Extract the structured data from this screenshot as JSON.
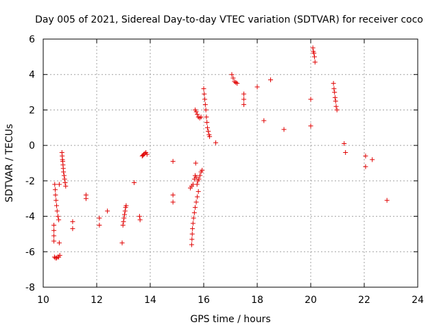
{
  "chart_data": {
    "type": "scatter",
    "title": "Day 005 of 2021, Sidereal Day-to-day VTEC variation (SDTVAR) for receiver coco",
    "xlabel": "GPS time / hours",
    "ylabel": "SDTVAR / TECUs",
    "xlim": [
      10,
      24
    ],
    "ylim": [
      -8,
      6
    ],
    "xticks": [
      10,
      12,
      14,
      16,
      18,
      20,
      22,
      24
    ],
    "yticks": [
      -8,
      -6,
      -4,
      -2,
      0,
      2,
      4,
      6
    ],
    "xtick_labels": [
      "10",
      "12",
      "14",
      "16",
      "18",
      "20",
      "22",
      "24"
    ],
    "ytick_labels": [
      "-8",
      "-6",
      "-4",
      "-2",
      "0",
      "2",
      "4",
      "6"
    ],
    "grid": true,
    "marker": "+",
    "color": "#e00000",
    "series": [
      {
        "name": "SDTVAR",
        "points": [
          [
            10.4,
            -4.5
          ],
          [
            10.4,
            -4.8
          ],
          [
            10.4,
            -5.1
          ],
          [
            10.4,
            -5.4
          ],
          [
            10.43,
            -2.2
          ],
          [
            10.45,
            -2.5
          ],
          [
            10.46,
            -2.8
          ],
          [
            10.48,
            -3.1
          ],
          [
            10.5,
            -3.4
          ],
          [
            10.52,
            -3.7
          ],
          [
            10.55,
            -4.0
          ],
          [
            10.58,
            -4.2
          ],
          [
            10.42,
            -6.3
          ],
          [
            10.46,
            -6.35
          ],
          [
            10.5,
            -6.35
          ],
          [
            10.54,
            -6.3
          ],
          [
            10.58,
            -6.3
          ],
          [
            10.62,
            -6.2
          ],
          [
            10.6,
            -5.5
          ],
          [
            10.6,
            -2.2
          ],
          [
            10.7,
            -0.4
          ],
          [
            10.71,
            -0.6
          ],
          [
            10.72,
            -0.8
          ],
          [
            10.73,
            -0.9
          ],
          [
            10.74,
            -1.1
          ],
          [
            10.75,
            -1.3
          ],
          [
            10.76,
            -1.5
          ],
          [
            10.78,
            -1.7
          ],
          [
            10.8,
            -1.9
          ],
          [
            10.82,
            -2.1
          ],
          [
            10.84,
            -2.3
          ],
          [
            11.1,
            -4.3
          ],
          [
            11.1,
            -4.7
          ],
          [
            11.6,
            -2.8
          ],
          [
            11.6,
            -3.0
          ],
          [
            12.1,
            -4.1
          ],
          [
            12.1,
            -4.5
          ],
          [
            12.4,
            -3.7
          ],
          [
            12.95,
            -5.5
          ],
          [
            12.98,
            -4.5
          ],
          [
            13.0,
            -4.3
          ],
          [
            13.02,
            -4.1
          ],
          [
            13.04,
            -3.9
          ],
          [
            13.06,
            -3.7
          ],
          [
            13.08,
            -3.5
          ],
          [
            13.1,
            -3.4
          ],
          [
            13.4,
            -2.1
          ],
          [
            13.6,
            -4.0
          ],
          [
            13.62,
            -4.2
          ],
          [
            13.7,
            -0.6
          ],
          [
            13.73,
            -0.55
          ],
          [
            13.76,
            -0.5
          ],
          [
            13.8,
            -0.45
          ],
          [
            13.84,
            -0.4
          ],
          [
            13.88,
            -0.5
          ],
          [
            14.85,
            -0.9
          ],
          [
            14.85,
            -2.8
          ],
          [
            14.85,
            -3.2
          ],
          [
            15.5,
            -2.4
          ],
          [
            15.55,
            -2.3
          ],
          [
            15.6,
            -2.2
          ],
          [
            15.65,
            -1.9
          ],
          [
            15.68,
            -1.7
          ],
          [
            15.72,
            -1.8
          ],
          [
            15.75,
            -2.2
          ],
          [
            15.78,
            -2.0
          ],
          [
            15.82,
            -1.9
          ],
          [
            15.86,
            -1.7
          ],
          [
            15.9,
            -1.5
          ],
          [
            15.94,
            -1.4
          ],
          [
            15.55,
            -5.6
          ],
          [
            15.56,
            -5.3
          ],
          [
            15.57,
            -5.0
          ],
          [
            15.58,
            -4.7
          ],
          [
            15.6,
            -4.4
          ],
          [
            15.62,
            -4.1
          ],
          [
            15.65,
            -3.8
          ],
          [
            15.68,
            -3.5
          ],
          [
            15.72,
            -3.2
          ],
          [
            15.76,
            -2.9
          ],
          [
            15.8,
            -2.6
          ],
          [
            15.7,
            -1.0
          ],
          [
            15.68,
            2.0
          ],
          [
            15.72,
            1.9
          ],
          [
            15.76,
            1.75
          ],
          [
            15.8,
            1.6
          ],
          [
            15.85,
            1.55
          ],
          [
            15.9,
            1.6
          ],
          [
            16.0,
            3.2
          ],
          [
            16.02,
            2.9
          ],
          [
            16.04,
            2.6
          ],
          [
            16.06,
            2.3
          ],
          [
            16.08,
            2.0
          ],
          [
            16.1,
            1.6
          ],
          [
            16.12,
            1.3
          ],
          [
            16.14,
            1.0
          ],
          [
            16.17,
            0.8
          ],
          [
            16.2,
            0.6
          ],
          [
            16.22,
            0.5
          ],
          [
            16.45,
            0.15
          ],
          [
            17.05,
            4.0
          ],
          [
            17.1,
            3.8
          ],
          [
            17.15,
            3.6
          ],
          [
            17.2,
            3.55
          ],
          [
            17.25,
            3.5
          ],
          [
            17.5,
            2.9
          ],
          [
            17.5,
            2.6
          ],
          [
            17.5,
            2.3
          ],
          [
            18.0,
            3.3
          ],
          [
            18.25,
            1.4
          ],
          [
            18.5,
            3.7
          ],
          [
            19.0,
            0.9
          ],
          [
            20.0,
            2.6
          ],
          [
            20.0,
            1.1
          ],
          [
            20.08,
            5.5
          ],
          [
            20.1,
            5.3
          ],
          [
            20.12,
            5.2
          ],
          [
            20.14,
            5.0
          ],
          [
            20.16,
            4.7
          ],
          [
            20.85,
            3.5
          ],
          [
            20.87,
            3.2
          ],
          [
            20.89,
            3.0
          ],
          [
            20.91,
            2.7
          ],
          [
            20.93,
            2.5
          ],
          [
            20.95,
            2.2
          ],
          [
            20.98,
            2.0
          ],
          [
            21.25,
            0.1
          ],
          [
            21.3,
            -0.4
          ],
          [
            22.05,
            -0.6
          ],
          [
            22.05,
            -1.2
          ],
          [
            22.3,
            -0.8
          ],
          [
            22.85,
            -3.1
          ]
        ]
      }
    ]
  }
}
